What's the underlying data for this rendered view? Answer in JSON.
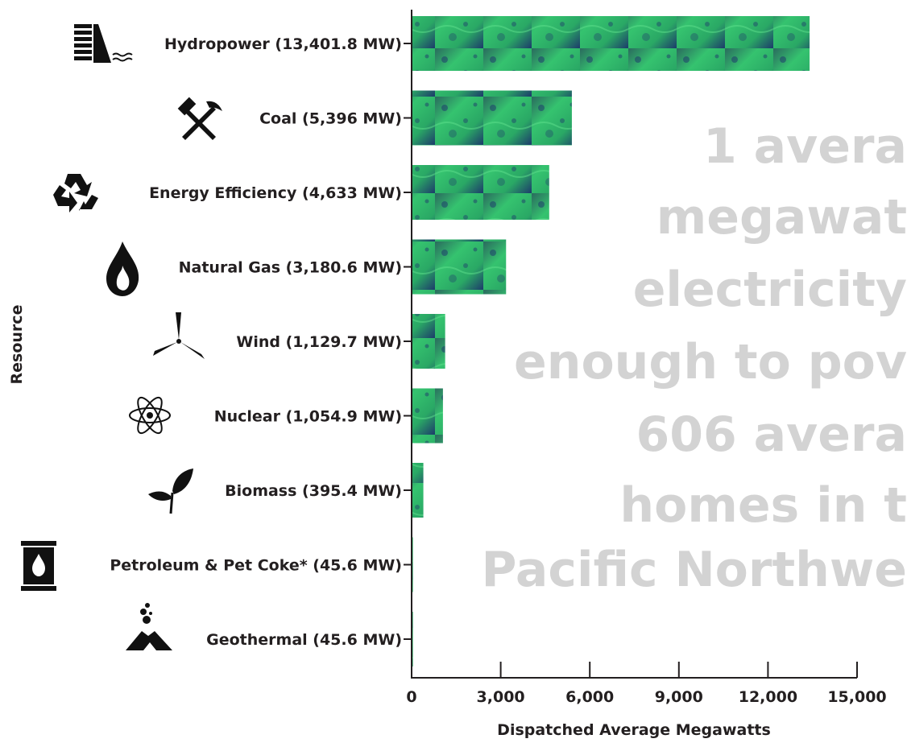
{
  "chart_data": {
    "type": "bar",
    "orientation": "horizontal",
    "categories": [
      "Hydropower (13,401.8 MW)",
      "Coal (5,396 MW)",
      "Energy Efficiency (4,633 MW)",
      "Natural Gas (3,180.6 MW)",
      "Wind (1,129.7 MW)",
      "Nuclear (1,054.9 MW)",
      "Biomass (395.4 MW)",
      "Petroleum & Pet Coke* (45.6 MW)",
      "Geothermal (45.6 MW)"
    ],
    "values": [
      13401.8,
      5396,
      4633,
      3180.6,
      1129.7,
      1054.9,
      395.4,
      45.6,
      45.6
    ],
    "icons": [
      "hydropower-dam-icon",
      "coal-pick-hammer-icon",
      "recycle-icon",
      "gas-flame-icon",
      "wind-turbine-icon",
      "atom-icon",
      "leaf-sprout-icon",
      "oil-barrel-icon",
      "volcano-icon"
    ],
    "xlabel": "Dispatched Average Megawatts",
    "ylabel": "Resource",
    "xlim": [
      0,
      15000
    ],
    "xticks": [
      0,
      3000,
      6000,
      9000,
      12000,
      15000
    ],
    "xtick_labels": [
      "0",
      "3,000",
      "6,000",
      "9,000",
      "12,000",
      "15,000"
    ],
    "grid": false,
    "bar_fill": "green textured image (#2fb36a with #1f3f6e dark patches)",
    "colors": {
      "bar_light": "#35c36f",
      "bar_dark": "#1d3a6b",
      "text": "#231f20",
      "watermark": "#d3d3d3"
    },
    "watermark_lines": [
      "1 avera",
      "megawat",
      "electricity",
      "enough to pov",
      "606 avera",
      "homes in t",
      "Pacific Northwe"
    ]
  }
}
